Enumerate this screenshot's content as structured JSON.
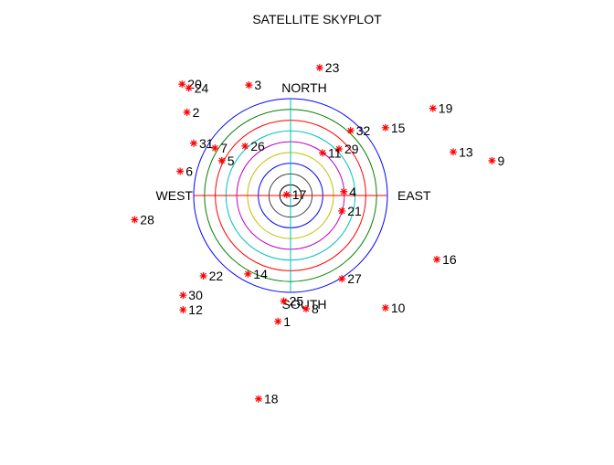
{
  "chart_data": {
    "type": "scatter",
    "subtype": "polar-skyplot",
    "title": "SATELLITE SKYPLOT",
    "direction_labels": {
      "north": "NORTH",
      "south": "SOUTH",
      "east": "EAST",
      "west": "WEST"
    },
    "marker_color": "#ff0000",
    "marker_symbol": "asterisk",
    "ring_colors": [
      "#0000ff",
      "#008000",
      "#ff0000",
      "#00bfbf",
      "#bf00bf",
      "#bfbf00",
      "#0000ff",
      "#404040",
      "#000000"
    ],
    "axis_cross_colors": {
      "vertical": "#00bfbf",
      "horizontal": "#ff0000"
    },
    "points": [
      {
        "label": "23",
        "x": 0.3,
        "y": 1.32
      },
      {
        "label": "20",
        "x": -1.12,
        "y": 1.15
      },
      {
        "label": "24",
        "x": -1.05,
        "y": 1.11
      },
      {
        "label": "3",
        "x": -0.43,
        "y": 1.14
      },
      {
        "label": "2",
        "x": -1.07,
        "y": 0.86
      },
      {
        "label": "19",
        "x": 1.47,
        "y": 0.9
      },
      {
        "label": "15",
        "x": 0.98,
        "y": 0.7
      },
      {
        "label": "32",
        "x": 0.62,
        "y": 0.67
      },
      {
        "label": "31",
        "x": -1.0,
        "y": 0.54
      },
      {
        "label": "7",
        "x": -0.78,
        "y": 0.49
      },
      {
        "label": "26",
        "x": -0.47,
        "y": 0.51
      },
      {
        "label": "29",
        "x": 0.5,
        "y": 0.48
      },
      {
        "label": "11",
        "x": 0.33,
        "y": 0.44
      },
      {
        "label": "13",
        "x": 1.68,
        "y": 0.45
      },
      {
        "label": "9",
        "x": 2.08,
        "y": 0.36
      },
      {
        "label": "5",
        "x": -0.71,
        "y": 0.36
      },
      {
        "label": "6",
        "x": -1.14,
        "y": 0.25
      },
      {
        "label": "17",
        "x": -0.04,
        "y": 0.01
      },
      {
        "label": "4",
        "x": 0.55,
        "y": 0.04
      },
      {
        "label": "21",
        "x": 0.53,
        "y": -0.16
      },
      {
        "label": "28",
        "x": -1.61,
        "y": -0.25
      },
      {
        "label": "16",
        "x": 1.51,
        "y": -0.66
      },
      {
        "label": "22",
        "x": -0.9,
        "y": -0.83
      },
      {
        "label": "14",
        "x": -0.44,
        "y": -0.81
      },
      {
        "label": "27",
        "x": 0.53,
        "y": -0.86
      },
      {
        "label": "30",
        "x": -1.11,
        "y": -1.03
      },
      {
        "label": "12",
        "x": -1.11,
        "y": -1.18
      },
      {
        "label": "25",
        "x": -0.07,
        "y": -1.09
      },
      {
        "label": "8",
        "x": 0.16,
        "y": -1.17
      },
      {
        "label": "10",
        "x": 0.98,
        "y": -1.16
      },
      {
        "label": "1",
        "x": -0.13,
        "y": -1.3
      },
      {
        "label": "18",
        "x": -0.33,
        "y": -2.1
      }
    ]
  }
}
